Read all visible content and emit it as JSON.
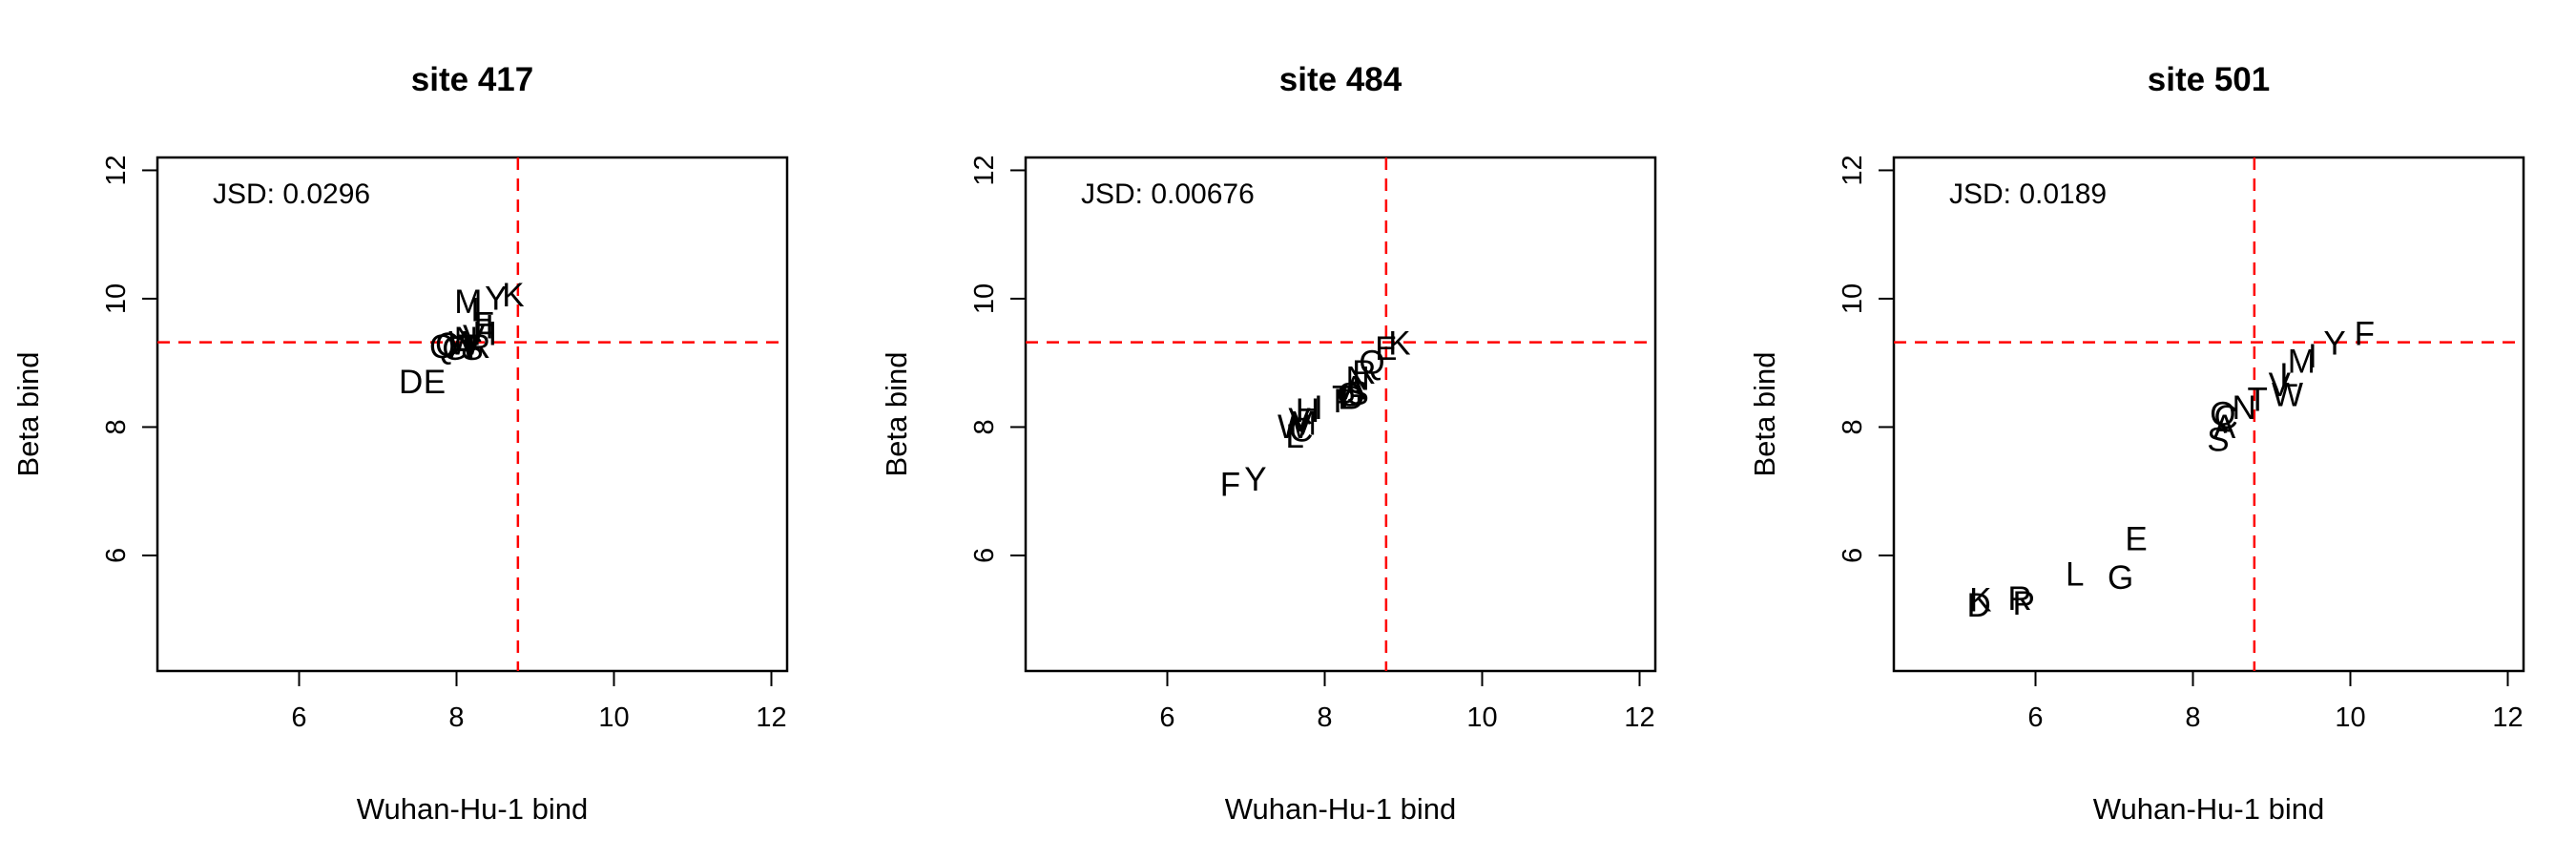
{
  "chart_data": [
    {
      "type": "scatter",
      "title": "site 417",
      "xlabel": "Wuhan-Hu-1 bind",
      "ylabel": "Beta bind",
      "xlim": [
        4.2,
        12.2
      ],
      "ylim": [
        4.2,
        12.2
      ],
      "xticks": [
        "6",
        "8",
        "10",
        "12"
      ],
      "yticks": [
        "6",
        "8",
        "10",
        "12"
      ],
      "x_tick_values": [
        6,
        8,
        10,
        12
      ],
      "y_tick_values": [
        6,
        8,
        10,
        12
      ],
      "ref_x": 8.78,
      "ref_y": 9.32,
      "annotation": "JSD: 0.0296",
      "grid": false,
      "points": [
        {
          "label": "Y",
          "x": 8.5,
          "y": 10.0
        },
        {
          "label": "K",
          "x": 8.72,
          "y": 10.05
        },
        {
          "label": "M",
          "x": 8.15,
          "y": 9.95
        },
        {
          "label": "L",
          "x": 8.3,
          "y": 9.82
        },
        {
          "label": "F",
          "x": 8.35,
          "y": 9.6
        },
        {
          "label": "I",
          "x": 8.42,
          "y": 9.55
        },
        {
          "label": "H",
          "x": 8.36,
          "y": 9.45
        },
        {
          "label": "N",
          "x": 8.12,
          "y": 9.37
        },
        {
          "label": "V",
          "x": 8.22,
          "y": 9.4
        },
        {
          "label": "C",
          "x": 7.88,
          "y": 9.28
        },
        {
          "label": "Q",
          "x": 7.82,
          "y": 9.25
        },
        {
          "label": "G",
          "x": 7.98,
          "y": 9.22
        },
        {
          "label": "A",
          "x": 8.05,
          "y": 9.25
        },
        {
          "label": "S",
          "x": 8.2,
          "y": 9.22
        },
        {
          "label": "R",
          "x": 8.28,
          "y": 9.25
        },
        {
          "label": "T",
          "x": 8.15,
          "y": 9.24
        },
        {
          "label": "W",
          "x": 8.1,
          "y": 9.3
        },
        {
          "label": "D",
          "x": 7.42,
          "y": 8.7
        },
        {
          "label": "E",
          "x": 7.72,
          "y": 8.7
        }
      ]
    },
    {
      "type": "scatter",
      "title": "site 484",
      "xlabel": "Wuhan-Hu-1 bind",
      "ylabel": "Beta bind",
      "xlim": [
        4.2,
        12.2
      ],
      "ylim": [
        4.2,
        12.2
      ],
      "xticks": [
        "6",
        "8",
        "10",
        "12"
      ],
      "yticks": [
        "6",
        "8",
        "10",
        "12"
      ],
      "x_tick_values": [
        6,
        8,
        10,
        12
      ],
      "y_tick_values": [
        6,
        8,
        10,
        12
      ],
      "ref_x": 8.78,
      "ref_y": 9.32,
      "annotation": "JSD: 0.00676",
      "grid": false,
      "points": [
        {
          "label": "K",
          "x": 8.95,
          "y": 9.3
        },
        {
          "label": "E",
          "x": 8.78,
          "y": 9.22
        },
        {
          "label": "Q",
          "x": 8.6,
          "y": 9.0
        },
        {
          "label": "R",
          "x": 8.5,
          "y": 8.85
        },
        {
          "label": "N",
          "x": 8.42,
          "y": 8.75
        },
        {
          "label": "A",
          "x": 8.38,
          "y": 8.6
        },
        {
          "label": "S",
          "x": 8.42,
          "y": 8.52
        },
        {
          "label": "G",
          "x": 8.32,
          "y": 8.5
        },
        {
          "label": "D",
          "x": 8.35,
          "y": 8.45
        },
        {
          "label": "T",
          "x": 8.22,
          "y": 8.45
        },
        {
          "label": "P",
          "x": 8.25,
          "y": 8.4
        },
        {
          "label": "H",
          "x": 7.78,
          "y": 8.25
        },
        {
          "label": "I",
          "x": 7.92,
          "y": 8.3
        },
        {
          "label": "V",
          "x": 7.68,
          "y": 8.1
        },
        {
          "label": "W",
          "x": 7.6,
          "y": 8.0
        },
        {
          "label": "M",
          "x": 7.72,
          "y": 8.05
        },
        {
          "label": "L",
          "x": 7.62,
          "y": 7.85
        },
        {
          "label": "C",
          "x": 7.7,
          "y": 7.95
        },
        {
          "label": "F",
          "x": 6.8,
          "y": 7.1
        },
        {
          "label": "Y",
          "x": 7.12,
          "y": 7.18
        }
      ]
    },
    {
      "type": "scatter",
      "title": "site 501",
      "xlabel": "Wuhan-Hu-1 bind",
      "ylabel": "Beta bind",
      "xlim": [
        4.2,
        12.2
      ],
      "ylim": [
        4.2,
        12.2
      ],
      "xticks": [
        "6",
        "8",
        "10",
        "12"
      ],
      "yticks": [
        "6",
        "8",
        "10",
        "12"
      ],
      "x_tick_values": [
        6,
        8,
        10,
        12
      ],
      "y_tick_values": [
        6,
        8,
        10,
        12
      ],
      "ref_x": 8.78,
      "ref_y": 9.32,
      "annotation": "JSD: 0.0189",
      "grid": false,
      "points": [
        {
          "label": "F",
          "x": 10.18,
          "y": 9.45
        },
        {
          "label": "Y",
          "x": 9.8,
          "y": 9.3
        },
        {
          "label": "I",
          "x": 9.52,
          "y": 9.1
        },
        {
          "label": "M",
          "x": 9.38,
          "y": 9.02
        },
        {
          "label": "L",
          "x": 9.22,
          "y": 8.8
        },
        {
          "label": "V",
          "x": 9.1,
          "y": 8.65
        },
        {
          "label": "W",
          "x": 9.2,
          "y": 8.5
        },
        {
          "label": "T",
          "x": 8.82,
          "y": 8.42
        },
        {
          "label": "N",
          "x": 8.65,
          "y": 8.3
        },
        {
          "label": "Q",
          "x": 8.38,
          "y": 8.2
        },
        {
          "label": "C",
          "x": 8.42,
          "y": 8.15
        },
        {
          "label": "A",
          "x": 8.4,
          "y": 8.0
        },
        {
          "label": "S",
          "x": 8.32,
          "y": 7.8
        },
        {
          "label": "E",
          "x": 7.28,
          "y": 6.25
        },
        {
          "label": "L",
          "x": 6.5,
          "y": 5.7
        },
        {
          "label": "G",
          "x": 7.08,
          "y": 5.65
        },
        {
          "label": "K",
          "x": 5.3,
          "y": 5.3
        },
        {
          "label": "D",
          "x": 5.28,
          "y": 5.22
        },
        {
          "label": "R",
          "x": 5.8,
          "y": 5.32
        },
        {
          "label": "P",
          "x": 5.85,
          "y": 5.25
        }
      ]
    }
  ]
}
